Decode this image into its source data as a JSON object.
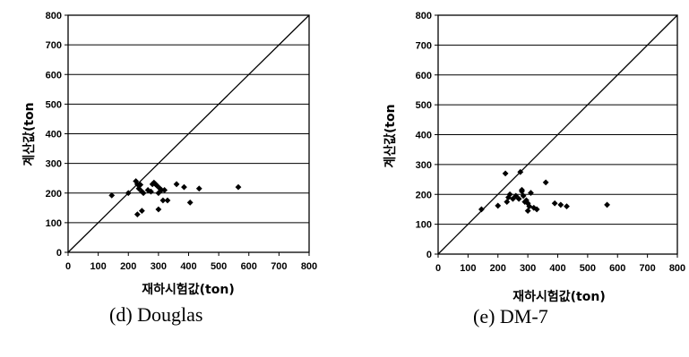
{
  "chart_data": [
    {
      "type": "scatter",
      "title": "",
      "xlabel": "재하시험값(ton)",
      "ylabel": "계산값(ton",
      "caption": "(d)  Douglas",
      "xlim": [
        0,
        800
      ],
      "ylim": [
        0,
        800
      ],
      "xticks": [
        0,
        100,
        200,
        300,
        400,
        500,
        600,
        700,
        800
      ],
      "yticks": [
        0,
        100,
        200,
        300,
        400,
        500,
        600,
        700,
        800
      ],
      "grid": "horizontal",
      "reference_line": "y = x",
      "series": [
        {
          "x": [
            145,
            200,
            225,
            230,
            240,
            245,
            235,
            250,
            265,
            275,
            280,
            285,
            290,
            295,
            300,
            305,
            310,
            320,
            330,
            360,
            385,
            405,
            435,
            565,
            230,
            245,
            300,
            315
          ],
          "y": [
            192,
            200,
            240,
            230,
            228,
            205,
            215,
            200,
            210,
            205,
            230,
            235,
            230,
            225,
            200,
            215,
            210,
            210,
            175,
            230,
            220,
            168,
            215,
            220,
            128,
            140,
            145,
            175
          ]
        }
      ]
    },
    {
      "type": "scatter",
      "title": "",
      "xlabel": "재하시험값(ton)",
      "ylabel": "계산값(ton",
      "caption": "(e)  DM-7",
      "xlim": [
        0,
        800
      ],
      "ylim": [
        0,
        800
      ],
      "xticks": [
        0,
        100,
        200,
        300,
        400,
        500,
        600,
        700,
        800
      ],
      "yticks": [
        0,
        100,
        200,
        300,
        400,
        500,
        600,
        700,
        800
      ],
      "grid": "horizontal",
      "reference_line": "y = x",
      "series": [
        {
          "x": [
            145,
            200,
            225,
            230,
            235,
            240,
            250,
            260,
            270,
            275,
            280,
            285,
            290,
            295,
            300,
            305,
            310,
            320,
            330,
            360,
            390,
            410,
            430,
            565,
            280,
            300
          ],
          "y": [
            150,
            162,
            270,
            175,
            190,
            200,
            185,
            195,
            185,
            275,
            215,
            195,
            175,
            180,
            170,
            160,
            205,
            155,
            150,
            240,
            170,
            165,
            160,
            165,
            210,
            145
          ]
        }
      ]
    }
  ]
}
